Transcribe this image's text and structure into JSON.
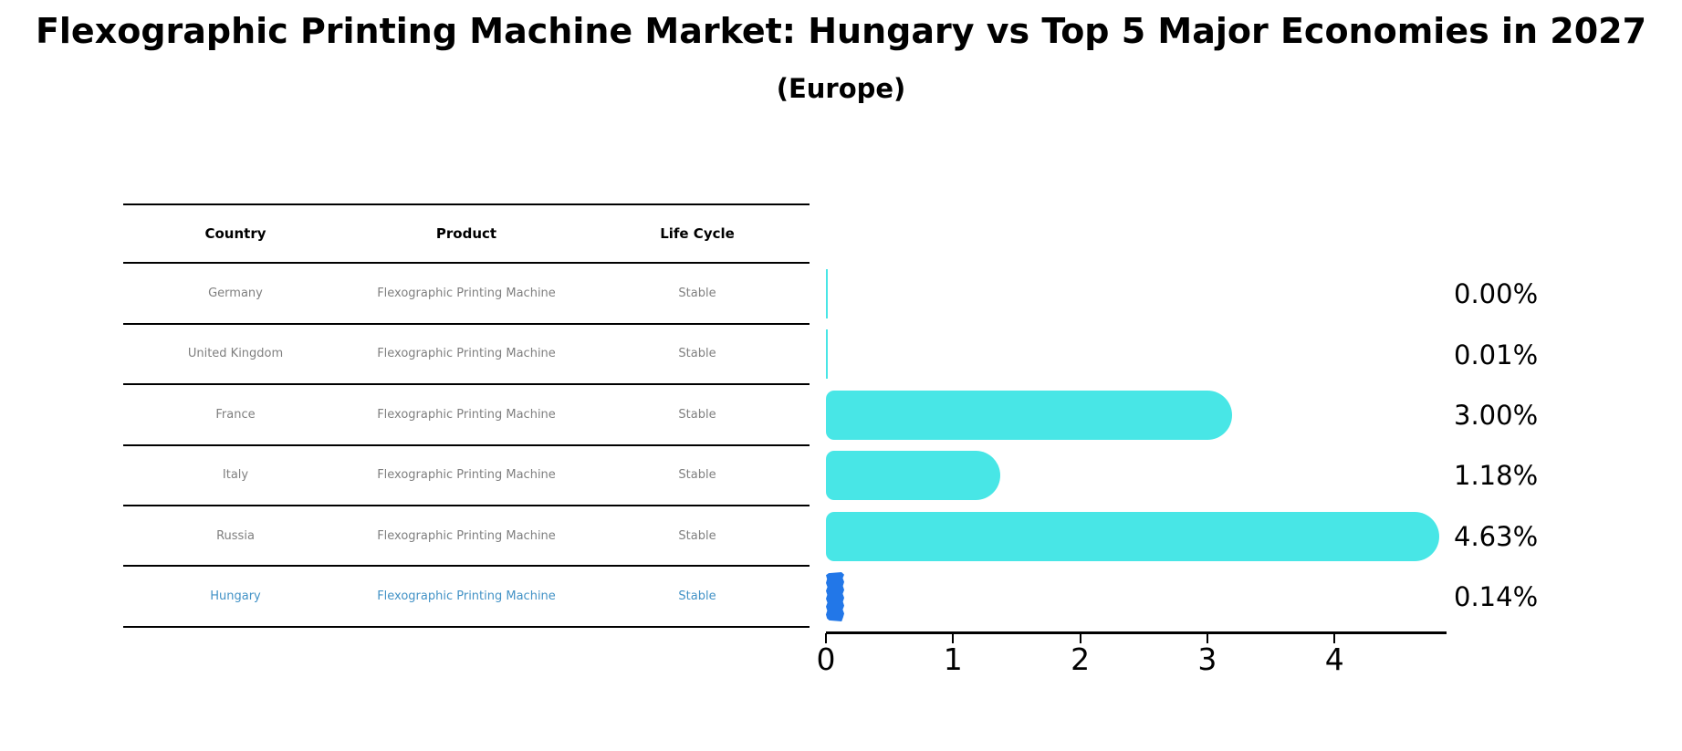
{
  "header": {
    "title": "Flexographic Printing Machine Market: Hungary vs Top 5 Major Economies in 2027",
    "subtitle": "(Europe)"
  },
  "table": {
    "columns": [
      "Country",
      "Product",
      "Life Cycle"
    ],
    "rows": [
      {
        "country": "Germany",
        "product": "Flexographic Printing Machine",
        "life_cycle": "Stable",
        "highlight": false
      },
      {
        "country": "United Kingdom",
        "product": "Flexographic Printing Machine",
        "life_cycle": "Stable",
        "highlight": false
      },
      {
        "country": "France",
        "product": "Flexographic Printing Machine",
        "life_cycle": "Stable",
        "highlight": false
      },
      {
        "country": "Italy",
        "product": "Flexographic Printing Machine",
        "life_cycle": "Stable",
        "highlight": false
      },
      {
        "country": "Russia",
        "product": "Flexographic Printing Machine",
        "life_cycle": "Stable",
        "highlight": false
      },
      {
        "country": "Hungary",
        "product": "Flexographic Printing Machine",
        "life_cycle": "Stable",
        "highlight": true
      }
    ]
  },
  "chart_data": {
    "type": "bar",
    "orientation": "horizontal",
    "title": "Flexographic Printing Machine Market: Hungary vs Top 5 Major Economies in 2027",
    "subtitle": "(Europe)",
    "categories": [
      "Germany",
      "United Kingdom",
      "France",
      "Italy",
      "Russia",
      "Hungary"
    ],
    "values": [
      0.0,
      0.01,
      3.0,
      1.18,
      4.63,
      0.14
    ],
    "value_labels": [
      "0.00%",
      "0.01%",
      "3.00%",
      "1.18%",
      "4.63%",
      "0.14%"
    ],
    "x_ticks": [
      "0",
      "1",
      "2",
      "3",
      "4"
    ],
    "xlim": [
      0,
      4.88
    ],
    "grid": false,
    "legend": false,
    "highlight_index": 5,
    "bar_color_default": "#48e6e6",
    "bar_color_highlight": "#2277e8",
    "highlight_text_color": "#4292c6"
  }
}
